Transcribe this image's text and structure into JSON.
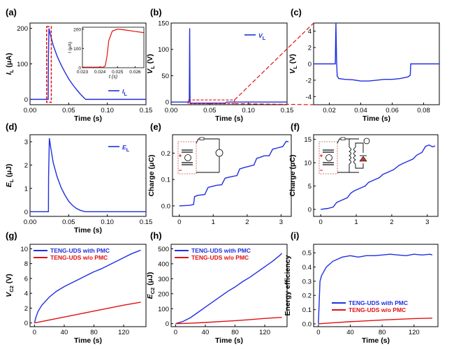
{
  "chart_data": [
    {
      "id": "a",
      "panel_label": "(a)",
      "type": "line",
      "xlabel": "Time (s)",
      "ylabel": "I_L (μA)",
      "xlim": [
        0,
        0.15
      ],
      "ylim": [
        -15,
        215
      ],
      "xticks": [
        "0.00",
        "0.05",
        "0.10",
        "0.15"
      ],
      "xtick_values": [
        0,
        0.05,
        0.1,
        0.15
      ],
      "yticks": [
        "0",
        "100",
        "200"
      ],
      "ytick_values": [
        0,
        100,
        200
      ],
      "series": [
        {
          "name": "I_L",
          "color": "#1f2fe0",
          "x": [
            0,
            0.0235,
            0.0238,
            0.0245,
            0.026,
            0.03,
            0.035,
            0.04,
            0.045,
            0.05,
            0.055,
            0.06,
            0.065,
            0.07,
            0.072,
            0.08,
            0.15
          ],
          "y": [
            0,
            0,
            120,
            200,
            185,
            152,
            122,
            98,
            77,
            58,
            42,
            28,
            15,
            4,
            0,
            0,
            0
          ]
        }
      ],
      "legend": "bottom-right",
      "inset": {
        "xlabel": "t (s)",
        "ylabel": "I (μA)",
        "xlim": [
          0.023,
          0.0265
        ],
        "ylim": [
          0,
          210
        ],
        "xticks": [
          "0.023",
          "0.024",
          "0.025",
          "0.026"
        ],
        "xtick_values": [
          0.023,
          0.024,
          0.025,
          0.026
        ],
        "yticks": [
          "0",
          "100",
          "200"
        ],
        "ytick_values": [
          0,
          100,
          200
        ],
        "x": [
          0.023,
          0.0242,
          0.0243,
          0.0244,
          0.0245,
          0.0247,
          0.025,
          0.0255,
          0.026,
          0.0265
        ],
        "y": [
          3,
          3,
          10,
          60,
          140,
          190,
          200,
          195,
          188,
          182
        ],
        "color": "#e01010"
      }
    },
    {
      "id": "b",
      "panel_label": "(b)",
      "type": "line",
      "xlabel": "Time (s)",
      "ylabel": "V_L (V)",
      "xlim": [
        0,
        0.15
      ],
      "ylim": [
        -5,
        150
      ],
      "xticks": [
        "0.00",
        "0.05",
        "0.10",
        "0.15"
      ],
      "xtick_values": [
        0,
        0.05,
        0.1,
        0.15
      ],
      "yticks": [
        "0",
        "50",
        "100",
        "150"
      ],
      "ytick_values": [
        0,
        50,
        100,
        150
      ],
      "series": [
        {
          "name": "V_L",
          "color": "#1f2fe0",
          "x": [
            0,
            0.0235,
            0.024,
            0.0245,
            0.025,
            0.03,
            0.04,
            0.05,
            0.06,
            0.07,
            0.072,
            0.15
          ],
          "y": [
            0,
            0,
            140,
            0,
            -2,
            -2,
            -2,
            -2,
            -2,
            -2,
            0,
            0
          ]
        }
      ],
      "legend": "top-right"
    },
    {
      "id": "c",
      "panel_label": "(c)",
      "type": "line",
      "xlabel": "Time (s)",
      "ylabel": "V_L (V)",
      "xlim": [
        0.01,
        0.09
      ],
      "ylim": [
        -5,
        5
      ],
      "xticks": [
        "0.02",
        "0.04",
        "0.06",
        "0.08"
      ],
      "xtick_values": [
        0.02,
        0.04,
        0.06,
        0.08
      ],
      "yticks": [
        "-4",
        "-2",
        "0",
        "2",
        "4"
      ],
      "ytick_values": [
        -4,
        -2,
        0,
        2,
        4
      ],
      "series": [
        {
          "name": "V_L",
          "color": "#1f2fe0",
          "x": [
            0.01,
            0.0238,
            0.0242,
            0.0246,
            0.025,
            0.026,
            0.03,
            0.035,
            0.04,
            0.045,
            0.05,
            0.055,
            0.06,
            0.065,
            0.07,
            0.0715,
            0.0718,
            0.09
          ],
          "y": [
            0,
            0,
            5,
            0.5,
            -1.5,
            -1.8,
            -1.9,
            -1.95,
            -2.1,
            -2.1,
            -2.0,
            -1.9,
            -1.9,
            -1.8,
            -1.6,
            -1.4,
            0,
            0
          ]
        }
      ]
    },
    {
      "id": "d",
      "panel_label": "(d)",
      "type": "line",
      "xlabel": "Time (s)",
      "ylabel": "E_L (μJ)",
      "xlim": [
        0,
        0.15
      ],
      "ylim": [
        -0.2,
        3.3
      ],
      "xticks": [
        "0.00",
        "0.05",
        "0.10",
        "0.15"
      ],
      "xtick_values": [
        0,
        0.05,
        0.1,
        0.15
      ],
      "yticks": [
        "0",
        "1",
        "2",
        "3"
      ],
      "ytick_values": [
        0,
        1,
        2,
        3
      ],
      "series": [
        {
          "name": "E_L",
          "color": "#1f2fe0",
          "x": [
            0,
            0.0238,
            0.024,
            0.025,
            0.027,
            0.03,
            0.035,
            0.04,
            0.045,
            0.05,
            0.055,
            0.06,
            0.065,
            0.07,
            0.072,
            0.15
          ],
          "y": [
            0,
            0,
            1.5,
            3.15,
            2.7,
            2.1,
            1.5,
            1.05,
            0.72,
            0.45,
            0.27,
            0.14,
            0.06,
            0.01,
            0,
            0
          ]
        }
      ],
      "legend": "top-right"
    },
    {
      "id": "e",
      "panel_label": "(e)",
      "type": "line",
      "xlabel": "",
      "ylabel": "Charge (μC)",
      "xlim": [
        -0.2,
        3.3
      ],
      "ylim": [
        -0.04,
        0.27
      ],
      "xticks": [
        "0",
        "1",
        "2",
        "3"
      ],
      "xtick_values": [
        0,
        1,
        2,
        3
      ],
      "yticks": [
        "0.0",
        "0.1",
        "0.2"
      ],
      "ytick_values": [
        0,
        0.1,
        0.2
      ],
      "series": [
        {
          "color": "#1f2fe0",
          "x": [
            0,
            0.3,
            0.42,
            0.45,
            0.55,
            0.75,
            0.85,
            0.95,
            1.1,
            1.25,
            1.35,
            1.5,
            1.7,
            1.78,
            1.9,
            2.05,
            2.2,
            2.28,
            2.4,
            2.5,
            2.65,
            2.75,
            2.9,
            3.05,
            3.15,
            3.22
          ],
          "y": [
            0,
            0.002,
            0.005,
            0.035,
            0.04,
            0.043,
            0.07,
            0.073,
            0.078,
            0.08,
            0.105,
            0.11,
            0.115,
            0.14,
            0.145,
            0.15,
            0.155,
            0.18,
            0.185,
            0.19,
            0.19,
            0.215,
            0.22,
            0.225,
            0.245,
            0.243
          ]
        }
      ],
      "circuit": "inset"
    },
    {
      "id": "f",
      "panel_label": "(f)",
      "type": "line",
      "xlabel": "",
      "ylabel": "Charge (μC)",
      "xlim": [
        -0.2,
        3.3
      ],
      "ylim": [
        -1.5,
        16
      ],
      "xticks": [
        "0",
        "1",
        "2",
        "3"
      ],
      "xtick_values": [
        0,
        1,
        2,
        3
      ],
      "yticks": [
        "0",
        "5",
        "10",
        "15"
      ],
      "ytick_values": [
        0,
        5,
        10,
        15
      ],
      "series": [
        {
          "color": "#1f2fe0",
          "x": [
            0,
            0.2,
            0.35,
            0.45,
            0.6,
            0.75,
            0.85,
            0.95,
            1.1,
            1.25,
            1.35,
            1.5,
            1.65,
            1.75,
            1.9,
            2.05,
            2.2,
            2.3,
            2.45,
            2.6,
            2.7,
            2.85,
            2.95,
            3.05,
            3.15,
            3.22
          ],
          "y": [
            0,
            0.2,
            0.5,
            1.5,
            2,
            2.5,
            3.5,
            4,
            4.5,
            5,
            5.8,
            6.3,
            6.8,
            7.5,
            8,
            8.5,
            9.4,
            9.8,
            10.3,
            10.8,
            11.6,
            12.2,
            13.5,
            13.8,
            13.4,
            13.6
          ]
        }
      ],
      "circuit": "inset"
    },
    {
      "id": "g",
      "panel_label": "(g)",
      "type": "line",
      "xlabel": "Time (s)",
      "ylabel": "V_C2 (V)",
      "xlim": [
        -6,
        150
      ],
      "ylim": [
        -0.5,
        10.6
      ],
      "xticks": [
        "0",
        "40",
        "80",
        "120"
      ],
      "xtick_values": [
        0,
        40,
        80,
        120
      ],
      "yticks": [
        "0",
        "2",
        "4",
        "6",
        "8",
        "10"
      ],
      "ytick_values": [
        0,
        2,
        4,
        6,
        8,
        10
      ],
      "series": [
        {
          "name": "TENG-UDS with PMC",
          "color": "#1f2fe0",
          "x": [
            0,
            2,
            5,
            10,
            20,
            30,
            40,
            50,
            60,
            70,
            80,
            90,
            100,
            110,
            120,
            130,
            140,
            143
          ],
          "y": [
            0,
            0.8,
            1.6,
            2.4,
            3.5,
            4.3,
            4.9,
            5.4,
            5.9,
            6.4,
            6.9,
            7.3,
            7.8,
            8.3,
            8.8,
            9.3,
            9.7,
            9.8
          ]
        },
        {
          "name": "TENG-UDS w/o PMC",
          "color": "#e01010",
          "x": [
            0,
            20,
            40,
            60,
            80,
            100,
            120,
            143
          ],
          "y": [
            0,
            0.4,
            0.8,
            1.2,
            1.6,
            2.0,
            2.4,
            2.8
          ]
        }
      ],
      "legend": "top-left"
    },
    {
      "id": "h",
      "panel_label": "(h)",
      "type": "line",
      "xlabel": "Time (s)",
      "ylabel": "E_C2 (μJ)",
      "xlim": [
        -6,
        150
      ],
      "ylim": [
        -20,
        530
      ],
      "xticks": [
        "0",
        "40",
        "80",
        "120"
      ],
      "xtick_values": [
        0,
        40,
        80,
        120
      ],
      "yticks": [
        "0",
        "100",
        "200",
        "300",
        "400",
        "500"
      ],
      "ytick_values": [
        0,
        100,
        200,
        300,
        400,
        500
      ],
      "series": [
        {
          "name": "TENG-UDS with PMC",
          "color": "#1f2fe0",
          "x": [
            0,
            10,
            20,
            30,
            40,
            50,
            60,
            70,
            80,
            90,
            100,
            110,
            120,
            130,
            140,
            143
          ],
          "y": [
            0,
            15,
            40,
            75,
            110,
            145,
            180,
            215,
            245,
            280,
            310,
            345,
            380,
            415,
            455,
            470
          ]
        },
        {
          "name": "TENG-UDS w/o PMC",
          "color": "#e01010",
          "x": [
            0,
            20,
            40,
            60,
            80,
            100,
            120,
            143
          ],
          "y": [
            0,
            3,
            8,
            14,
            20,
            27,
            35,
            42
          ]
        }
      ],
      "legend": "top-left"
    },
    {
      "id": "i",
      "panel_label": "(i)",
      "type": "line",
      "xlabel": "Time (s)",
      "ylabel": "Energy efficiency",
      "xlim": [
        -6,
        150
      ],
      "ylim": [
        -0.02,
        0.56
      ],
      "xticks": [
        "0",
        "40",
        "80",
        "120"
      ],
      "xtick_values": [
        0,
        40,
        80,
        120
      ],
      "yticks": [
        "0.0",
        "0.1",
        "0.2",
        "0.3",
        "0.4",
        "0.5"
      ],
      "ytick_values": [
        0,
        0.1,
        0.2,
        0.3,
        0.4,
        0.5
      ],
      "series": [
        {
          "name": "TENG-UDS with PMC",
          "color": "#1f2fe0",
          "x": [
            0,
            2,
            4,
            6,
            8,
            10,
            14,
            18,
            22,
            26,
            30,
            35,
            40,
            50,
            60,
            70,
            80,
            90,
            100,
            110,
            120,
            130,
            140,
            143
          ],
          "y": [
            0,
            0.3,
            0.34,
            0.36,
            0.38,
            0.4,
            0.42,
            0.44,
            0.45,
            0.46,
            0.47,
            0.475,
            0.48,
            0.47,
            0.48,
            0.48,
            0.485,
            0.49,
            0.485,
            0.48,
            0.49,
            0.485,
            0.49,
            0.485
          ]
        },
        {
          "name": "TENG-UDS w/o PMC",
          "color": "#e01010",
          "x": [
            0,
            20,
            40,
            60,
            80,
            100,
            120,
            143
          ],
          "y": [
            0,
            0.008,
            0.015,
            0.021,
            0.027,
            0.032,
            0.037,
            0.04
          ]
        }
      ],
      "legend": "bottom-right"
    }
  ]
}
